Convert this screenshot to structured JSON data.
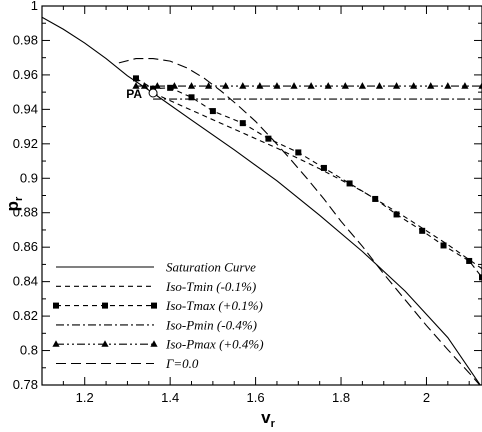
{
  "chart_data": {
    "type": "line",
    "title": "",
    "xlabel": "v",
    "xlabel_sub": "r",
    "ylabel": "p",
    "ylabel_sub": "r",
    "xlim": [
      1.1,
      2.13
    ],
    "ylim": [
      0.78,
      1.0
    ],
    "xticks": [
      1.2,
      1.4,
      1.6,
      1.8,
      2.0
    ],
    "xtick_labels": [
      "1.2",
      "1.4",
      "1.6",
      "1.8",
      "2"
    ],
    "yticks": [
      0.78,
      0.8,
      0.82,
      0.84,
      0.86,
      0.88,
      0.9,
      0.92,
      0.94,
      0.96,
      0.98,
      1.0
    ],
    "ytick_labels": [
      "0.78",
      "0.8",
      "0.82",
      "0.84",
      "0.86",
      "0.88",
      "0.9",
      "0.92",
      "0.94",
      "0.96",
      "0.98",
      "1"
    ],
    "grid": false,
    "legend_position": "bottom-left",
    "series": [
      {
        "name": "Saturation Curve",
        "dash": "",
        "marker": "none",
        "x": [
          1.1,
          1.15,
          1.2,
          1.25,
          1.3,
          1.36,
          1.45,
          1.55,
          1.65,
          1.75,
          1.85,
          1.95,
          2.05,
          2.13
        ],
        "y": [
          0.9935,
          0.9865,
          0.9785,
          0.9695,
          0.9595,
          0.9495,
          0.9338,
          0.9165,
          0.8985,
          0.8785,
          0.8575,
          0.8345,
          0.8075,
          0.7785
        ]
      },
      {
        "name": "Iso-Tmin (-0.1%)",
        "dash": "5,4",
        "marker": "none",
        "x": [
          1.36,
          1.45,
          1.55,
          1.65,
          1.75,
          1.85,
          1.95,
          2.05,
          2.13
        ],
        "y": [
          0.9495,
          0.9395,
          0.9285,
          0.9175,
          0.9055,
          0.8925,
          0.8775,
          0.8615,
          0.8475
        ]
      },
      {
        "name": "Iso-Tmax (+0.1%)",
        "dash": "5,4",
        "marker": "square",
        "x": [
          1.32,
          1.36,
          1.4,
          1.45,
          1.5,
          1.57,
          1.63,
          1.7,
          1.76,
          1.82,
          1.88,
          1.93,
          1.99,
          2.04,
          2.1,
          2.13
        ],
        "y": [
          0.958,
          0.952,
          0.9525,
          0.947,
          0.939,
          0.932,
          0.923,
          0.915,
          0.906,
          0.897,
          0.888,
          0.879,
          0.8695,
          0.861,
          0.852,
          0.8425
        ]
      },
      {
        "name": "Iso-Pmin (-0.4%)",
        "dash": "8,3,2,3",
        "marker": "none",
        "x": [
          1.36,
          2.13
        ],
        "y": [
          0.946,
          0.946
        ]
      },
      {
        "name": "Iso-Pmax (+0.4%)",
        "dash": "8,3,2,3,2,3",
        "marker": "triangle",
        "x": [
          1.32,
          1.34,
          1.37,
          1.41,
          1.45,
          1.49,
          1.53,
          1.57,
          1.61,
          1.65,
          1.69,
          1.73,
          1.77,
          1.81,
          1.85,
          1.89,
          1.93,
          1.97,
          2.01,
          2.05,
          2.09,
          2.13
        ],
        "y": [
          0.9535,
          0.9535,
          0.9535,
          0.9535,
          0.9535,
          0.9535,
          0.9535,
          0.9535,
          0.9535,
          0.9535,
          0.9535,
          0.9535,
          0.9535,
          0.9535,
          0.9535,
          0.9535,
          0.9535,
          0.9535,
          0.9535,
          0.9535,
          0.9535,
          0.9535
        ]
      },
      {
        "name": "Γ=0.0",
        "dash": "10,5",
        "marker": "none",
        "x": [
          1.28,
          1.32,
          1.36,
          1.4,
          1.44,
          1.48,
          1.52,
          1.56,
          1.6,
          1.64,
          1.68,
          1.72,
          1.76,
          1.8,
          1.85,
          1.9,
          1.95,
          2.0,
          2.05,
          2.1,
          2.13
        ],
        "y": [
          0.967,
          0.9695,
          0.9695,
          0.968,
          0.964,
          0.958,
          0.9505,
          0.942,
          0.933,
          0.9225,
          0.9115,
          0.9,
          0.888,
          0.875,
          0.8605,
          0.8445,
          0.8295,
          0.8145,
          0.8005,
          0.787,
          0.7785
        ]
      }
    ],
    "annotations": [
      {
        "text": "PA",
        "x": 1.36,
        "y": 0.9495
      }
    ]
  }
}
